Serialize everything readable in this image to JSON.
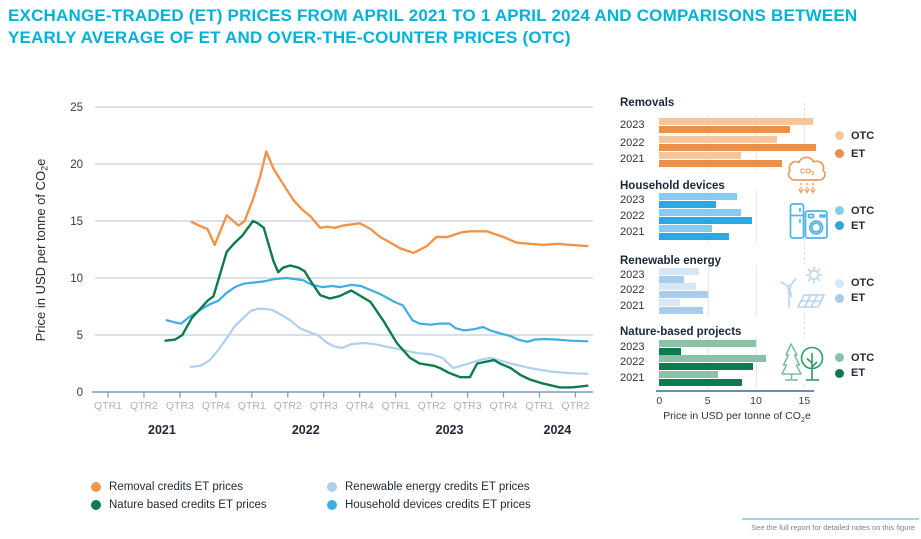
{
  "title": {
    "line1": "EXCHANGE-TRADED (ET) PRICES FROM APRIL 2021 TO 1 APRIL 2024 AND COMPARISONS BETWEEN",
    "line2": "YEARLY AVERAGE OF ET AND OVER-THE-COUNTER PRICES (OTC)"
  },
  "footnote": "See the full report for detailed notes on this figure",
  "colors": {
    "title": "#00B1D8",
    "grid_line": "#C3CEDC",
    "axis_line": "#7E9CC6",
    "quarter_label": "#A9B0BC",
    "year_label": "#20293A",
    "tick_label": "#333D4D",
    "bar_axis": "#6E8CB0",
    "footnote_line": "#9ED8E8",
    "footnote_text": "#7A838C"
  },
  "chart_data": [
    {
      "type": "line",
      "ylabel": "Price in USD per tonne of CO2e",
      "ylim": [
        0,
        25
      ],
      "yticks": [
        0,
        5,
        10,
        15,
        20,
        25
      ],
      "x_unit": "months since Jan 2021",
      "x_axis": {
        "start": "April 2021",
        "end": "1 April 2024",
        "quarter_labels": [
          "QTR1",
          "QTR2",
          "QTR3",
          "QTR4",
          "QTR1",
          "QTR2",
          "QTR3",
          "QTR4",
          "QTR1",
          "QTR2",
          "QTR3",
          "QTR4",
          "QTR1",
          "QTR2"
        ],
        "year_labels": [
          "2021",
          "2022",
          "2023",
          "2024"
        ]
      },
      "grid": true,
      "legend_position": "bottom",
      "series": [
        {
          "name": "Removal credits ET prices",
          "color": "#F0944A",
          "points": [
            [
              7,
              14.9
            ],
            [
              7.6,
              14.6
            ],
            [
              8.3,
              14.3
            ],
            [
              8.9,
              12.9
            ],
            [
              9.9,
              15.5
            ],
            [
              10.9,
              14.6
            ],
            [
              11.4,
              15
            ],
            [
              12.1,
              16.9
            ],
            [
              12.7,
              18.9
            ],
            [
              13.2,
              21.1
            ],
            [
              13.8,
              19.6
            ],
            [
              14.4,
              18.6
            ],
            [
              15,
              17.6
            ],
            [
              15.5,
              16.8
            ],
            [
              16.2,
              16
            ],
            [
              16.9,
              15.4
            ],
            [
              17.7,
              14.4
            ],
            [
              18.3,
              14.5
            ],
            [
              18.9,
              14.4
            ],
            [
              19.6,
              14.6
            ],
            [
              21,
              14.8
            ],
            [
              21.9,
              14.3
            ],
            [
              22.7,
              13.6
            ],
            [
              23.4,
              13.2
            ],
            [
              24.4,
              12.6
            ],
            [
              25.5,
              12.2
            ],
            [
              26.6,
              12.8
            ],
            [
              27.4,
              13.6
            ],
            [
              28.3,
              13.6
            ],
            [
              29.5,
              14
            ],
            [
              30.2,
              14.1
            ],
            [
              31.6,
              14.1
            ],
            [
              33,
              13.6
            ],
            [
              34.1,
              13.1
            ],
            [
              35.2,
              13
            ],
            [
              36.3,
              12.9
            ],
            [
              37.5,
              13
            ],
            [
              38.6,
              12.9
            ],
            [
              40,
              12.8
            ]
          ]
        },
        {
          "name": "Nature based credits ET prices",
          "color": "#0C7B4F",
          "points": [
            [
              4.8,
              4.5
            ],
            [
              5.6,
              4.6
            ],
            [
              6.2,
              5
            ],
            [
              7,
              6.5
            ],
            [
              7.7,
              7.3
            ],
            [
              8.3,
              8
            ],
            [
              8.8,
              8.4
            ],
            [
              9.9,
              12.3
            ],
            [
              10.5,
              13
            ],
            [
              11.2,
              13.7
            ],
            [
              12.1,
              15
            ],
            [
              12.5,
              14.8
            ],
            [
              13,
              14.4
            ],
            [
              13.8,
              11.5
            ],
            [
              14.2,
              10.5
            ],
            [
              14.6,
              10.9
            ],
            [
              15.2,
              11.1
            ],
            [
              15.9,
              10.9
            ],
            [
              16.4,
              10.6
            ],
            [
              17,
              9.6
            ],
            [
              17.7,
              8.5
            ],
            [
              18.5,
              8.2
            ],
            [
              19.3,
              8.4
            ],
            [
              20.3,
              8.9
            ],
            [
              21.9,
              7.9
            ],
            [
              23,
              6.2
            ],
            [
              24.1,
              4.3
            ],
            [
              25.2,
              3
            ],
            [
              26,
              2.5
            ],
            [
              27.2,
              2.3
            ],
            [
              27.7,
              2.1
            ],
            [
              28.4,
              1.7
            ],
            [
              29.4,
              1.3
            ],
            [
              30.2,
              1.3
            ],
            [
              30.8,
              2.5
            ],
            [
              32.2,
              2.8
            ],
            [
              32.7,
              2.5
            ],
            [
              33.6,
              2.1
            ],
            [
              34.4,
              1.5
            ],
            [
              35.2,
              1.1
            ],
            [
              36.1,
              0.8
            ],
            [
              36.9,
              0.6
            ],
            [
              37.7,
              0.4
            ],
            [
              38.6,
              0.4
            ],
            [
              39.1,
              0.45
            ],
            [
              40,
              0.55
            ]
          ]
        },
        {
          "name": "Renewable energy credits ET prices",
          "color": "#AFD0ED",
          "points": [
            [
              6.9,
              2.2
            ],
            [
              7.7,
              2.3
            ],
            [
              8.5,
              2.8
            ],
            [
              9.2,
              3.7
            ],
            [
              9.9,
              4.7
            ],
            [
              10.6,
              5.8
            ],
            [
              11.3,
              6.5
            ],
            [
              11.9,
              7.1
            ],
            [
              12.5,
              7.3
            ],
            [
              13.1,
              7.3
            ],
            [
              13.7,
              7.2
            ],
            [
              14.4,
              6.8
            ],
            [
              15.2,
              6.3
            ],
            [
              16,
              5.6
            ],
            [
              16.9,
              5.2
            ],
            [
              17.5,
              5
            ],
            [
              18.3,
              4.3
            ],
            [
              18.9,
              4
            ],
            [
              19.5,
              3.85
            ],
            [
              20.3,
              4.2
            ],
            [
              21.3,
              4.3
            ],
            [
              22.2,
              4.2
            ],
            [
              23.1,
              4
            ],
            [
              24.1,
              3.8
            ],
            [
              25.8,
              3.4
            ],
            [
              27,
              3.3
            ],
            [
              27.9,
              3
            ],
            [
              28.8,
              2.1
            ],
            [
              29.8,
              2.4
            ],
            [
              31,
              2.8
            ],
            [
              31.9,
              3
            ],
            [
              33.6,
              2.5
            ],
            [
              35.2,
              2.1
            ],
            [
              36.9,
              1.8
            ],
            [
              38.6,
              1.65
            ],
            [
              40,
              1.6
            ]
          ]
        },
        {
          "name": "Household devices credits ET prices",
          "color": "#41ACDF",
          "points": [
            [
              4.9,
              6.3
            ],
            [
              5.6,
              6.1
            ],
            [
              6.1,
              6
            ],
            [
              6.8,
              6.6
            ],
            [
              7.7,
              7.2
            ],
            [
              8.5,
              7.7
            ],
            [
              9.2,
              8
            ],
            [
              9.9,
              8.7
            ],
            [
              10.6,
              9.2
            ],
            [
              11.3,
              9.5
            ],
            [
              12.1,
              9.6
            ],
            [
              13,
              9.7
            ],
            [
              13.9,
              9.9
            ],
            [
              14.9,
              10
            ],
            [
              15.6,
              9.9
            ],
            [
              16.3,
              9.8
            ],
            [
              17,
              9.4
            ],
            [
              17.9,
              9.2
            ],
            [
              18.7,
              9.3
            ],
            [
              19.4,
              9.2
            ],
            [
              20.3,
              9.4
            ],
            [
              21.1,
              9.3
            ],
            [
              22,
              8.9
            ],
            [
              22.7,
              8.6
            ],
            [
              23.9,
              7.9
            ],
            [
              24.6,
              7.6
            ],
            [
              25.4,
              6.3
            ],
            [
              26,
              6
            ],
            [
              26.9,
              5.9
            ],
            [
              27.7,
              6
            ],
            [
              28.5,
              6
            ],
            [
              29,
              5.6
            ],
            [
              29.7,
              5.4
            ],
            [
              30.5,
              5.5
            ],
            [
              31.3,
              5.7
            ],
            [
              31.9,
              5.4
            ],
            [
              32.7,
              5.15
            ],
            [
              33.6,
              4.9
            ],
            [
              34.2,
              4.6
            ],
            [
              35,
              4.4
            ],
            [
              35.6,
              4.6
            ],
            [
              36.4,
              4.65
            ],
            [
              37.5,
              4.6
            ],
            [
              38.6,
              4.5
            ],
            [
              40,
              4.45
            ]
          ]
        }
      ]
    },
    {
      "type": "bar",
      "orientation": "horizontal",
      "xlabel": "Price in USD per tonne of CO2e",
      "xlim": [
        0,
        16.5
      ],
      "xticks": [
        0,
        5,
        10,
        15
      ],
      "legend_labels": {
        "otc": "OTC",
        "et": "ET"
      },
      "groups": [
        {
          "title": "Removals",
          "icon": "co2-removal-cloud-icon",
          "colors": {
            "otc": "#F5C69B",
            "et": "#EE8F47"
          },
          "rows": [
            {
              "year": "2023",
              "OTC": 15.9,
              "ET": 13.5
            },
            {
              "year": "2022",
              "OTC": 12.2,
              "ET": 16.2
            },
            {
              "year": "2021",
              "OTC": 8.4,
              "ET": 14.7
            }
          ]
        },
        {
          "title": "Household devices",
          "icon": "household-appliances-icon",
          "colors": {
            "otc": "#84CBEF",
            "et": "#2EA7DF"
          },
          "rows": [
            {
              "year": "2023",
              "OTC": 8.0,
              "ET": 5.9
            },
            {
              "year": "2022",
              "OTC": 8.4,
              "ET": 9.6
            },
            {
              "year": "2021",
              "OTC": 5.5,
              "ET": 7.2
            }
          ]
        },
        {
          "title": "Renewable energy",
          "icon": "wind-solar-icon",
          "colors": {
            "otc": "#D6E7F7",
            "et": "#A9CCEA"
          },
          "rows": [
            {
              "year": "2023",
              "OTC": 4.1,
              "ET": 2.6
            },
            {
              "year": "2022",
              "OTC": 3.8,
              "ET": 5.0
            },
            {
              "year": "2021",
              "OTC": 2.1,
              "ET": 4.5
            }
          ]
        },
        {
          "title": "Nature-based projects",
          "icon": "trees-icon",
          "colors": {
            "otc": "#89C2A7",
            "et": "#0C7B4F"
          },
          "rows": [
            {
              "year": "2023",
              "OTC": 10.0,
              "ET": 2.2
            },
            {
              "year": "2022",
              "OTC": 11.0,
              "ET": 9.7
            },
            {
              "year": "2021",
              "OTC": 6.1,
              "ET": 8.6
            }
          ]
        }
      ]
    }
  ]
}
